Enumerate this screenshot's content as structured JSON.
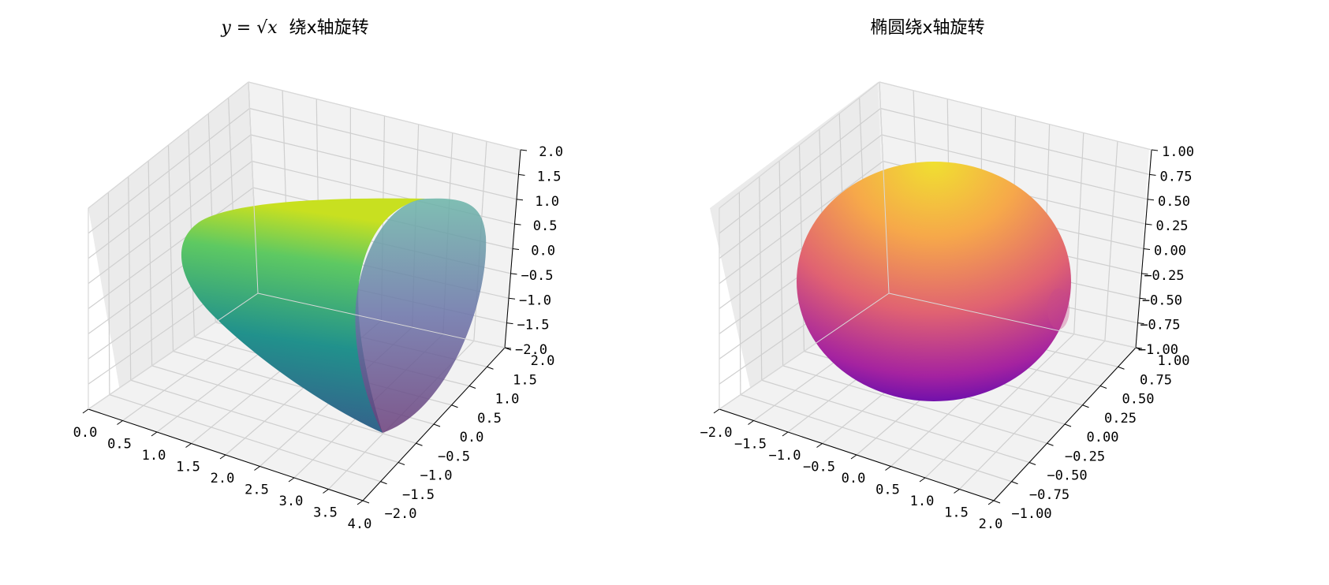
{
  "chart_data": [
    {
      "type": "surface3d",
      "title": "绕x轴旋转",
      "title_math": "y = √x",
      "function": "y = sqrt(x), rotated about x-axis",
      "x": [
        0.0,
        0.5,
        1.0,
        1.5,
        2.0,
        2.5,
        3.0,
        3.5,
        4.0
      ],
      "radius": [
        0.0,
        0.707,
        1.0,
        1.225,
        1.414,
        1.581,
        1.732,
        1.871,
        2.0
      ],
      "xlim": [
        0,
        4
      ],
      "ylim": [
        -2,
        2
      ],
      "zlim": [
        -2,
        2
      ],
      "x_ticks": [
        "0.0",
        "0.5",
        "1.0",
        "1.5",
        "2.0",
        "2.5",
        "3.0",
        "3.5",
        "4.0"
      ],
      "y_ticks": [
        "−2.0",
        "−1.5",
        "−1.0",
        "−0.5",
        "0.0",
        "0.5",
        "1.0",
        "1.5",
        "2.0"
      ],
      "z_ticks": [
        "−2.0",
        "−1.5",
        "−1.0",
        "−0.5",
        "0.0",
        "0.5",
        "1.0",
        "1.5",
        "2.0"
      ],
      "colormap": "viridis",
      "colormap_colors": [
        "#440154",
        "#3b528b",
        "#21918c",
        "#5ec962",
        "#fde725"
      ],
      "grid": true
    },
    {
      "type": "surface3d",
      "title": "椭圆绕x轴旋转",
      "function": "x²/4 + y² = 1, rotated about x-axis",
      "x": [
        -2.0,
        -1.5,
        -1.0,
        -0.5,
        0.0,
        0.5,
        1.0,
        1.5,
        2.0
      ],
      "radius": [
        0.0,
        0.661,
        0.866,
        0.968,
        1.0,
        0.968,
        0.866,
        0.661,
        0.0
      ],
      "xlim": [
        -2,
        2
      ],
      "ylim": [
        -1,
        1
      ],
      "zlim": [
        -1,
        1
      ],
      "x_ticks": [
        "−2.0",
        "−1.5",
        "−1.0",
        "−0.5",
        "0.0",
        "0.5",
        "1.0",
        "1.5",
        "2.0"
      ],
      "y_ticks": [
        "−1.00",
        "−0.75",
        "−0.50",
        "−0.25",
        "0.00",
        "0.25",
        "0.50",
        "0.75",
        "1.00"
      ],
      "z_ticks": [
        "−1.00",
        "−0.75",
        "−0.50",
        "−0.25",
        "0.00",
        "0.25",
        "0.50",
        "0.75",
        "1.00"
      ],
      "colormap": "plasma",
      "colormap_colors": [
        "#0d0887",
        "#7e03a8",
        "#cc4778",
        "#f89540",
        "#f0f921"
      ],
      "grid": true
    }
  ]
}
